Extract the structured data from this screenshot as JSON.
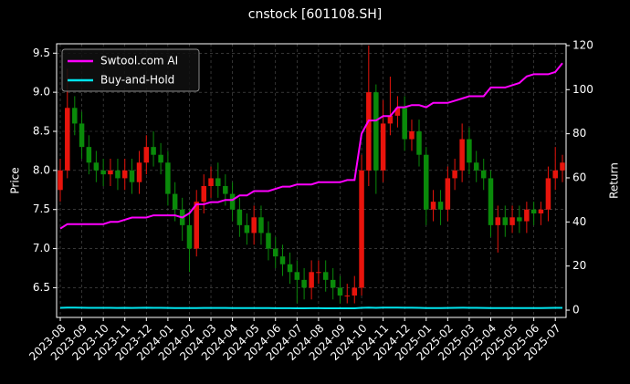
{
  "chart_data": {
    "type": "candlestick",
    "title": "cnstock [601108.SH]",
    "ylabel": "Price",
    "y2label": "Return",
    "x": [
      0,
      0.33,
      0.67,
      1,
      1.33,
      1.67,
      2,
      2.33,
      2.67,
      3,
      3.33,
      3.67,
      4,
      4.33,
      4.67,
      5,
      5.33,
      5.67,
      6,
      6.33,
      6.67,
      7,
      7.33,
      7.67,
      8,
      8.33,
      8.67,
      9,
      9.33,
      9.67,
      10,
      10.33,
      10.67,
      11,
      11.33,
      11.67,
      12,
      12.33,
      12.67,
      13,
      13.33,
      13.67,
      14,
      14.33,
      14.67,
      15,
      15.33,
      15.67,
      16,
      16.33,
      16.67,
      17,
      17.33,
      17.67,
      18,
      18.33,
      18.67,
      19,
      19.33,
      19.67,
      20,
      20.33,
      20.67,
      21,
      21.33,
      21.67,
      22,
      22.33,
      22.67,
      23,
      23.33
    ],
    "ohlc": {
      "open": [
        7.75,
        8.0,
        8.8,
        8.6,
        8.3,
        8.1,
        8.0,
        7.95,
        8.0,
        7.9,
        8.0,
        7.85,
        8.1,
        8.3,
        8.2,
        8.1,
        7.7,
        7.5,
        7.3,
        7.0,
        7.6,
        7.8,
        7.9,
        7.8,
        7.7,
        7.5,
        7.3,
        7.2,
        7.4,
        7.2,
        7.0,
        6.9,
        6.8,
        6.7,
        6.6,
        6.5,
        6.7,
        6.7,
        6.6,
        6.5,
        6.4,
        6.4,
        6.5,
        8.0,
        9.0,
        8.0,
        8.6,
        8.7,
        8.8,
        8.4,
        8.5,
        8.2,
        7.5,
        7.6,
        7.5,
        7.9,
        8.0,
        8.4,
        8.1,
        8.0,
        7.9,
        7.3,
        7.4,
        7.3,
        7.4,
        7.35,
        7.5,
        7.45,
        7.5,
        7.9,
        8.0
      ],
      "high": [
        8.15,
        9.3,
        8.95,
        8.75,
        8.45,
        8.25,
        8.15,
        8.15,
        8.15,
        8.15,
        8.15,
        8.25,
        8.45,
        8.5,
        8.35,
        8.25,
        7.85,
        7.65,
        7.5,
        7.75,
        7.95,
        8.05,
        8.1,
        7.95,
        7.85,
        7.65,
        7.45,
        7.55,
        7.55,
        7.35,
        7.15,
        7.05,
        6.95,
        6.85,
        6.75,
        6.85,
        6.85,
        6.85,
        6.75,
        6.65,
        6.55,
        6.65,
        8.2,
        9.6,
        9.1,
        8.9,
        9.2,
        8.95,
        8.95,
        8.65,
        8.65,
        8.3,
        7.75,
        7.75,
        8.05,
        8.15,
        8.6,
        8.55,
        8.25,
        8.15,
        8.0,
        7.55,
        7.55,
        7.55,
        7.55,
        7.6,
        7.6,
        7.6,
        8.05,
        8.3,
        8.2
      ],
      "low": [
        7.6,
        7.9,
        8.45,
        8.15,
        7.95,
        7.85,
        7.8,
        7.8,
        7.75,
        7.75,
        7.7,
        7.7,
        7.95,
        8.05,
        7.95,
        7.55,
        7.35,
        7.1,
        6.7,
        6.9,
        7.45,
        7.65,
        7.65,
        7.55,
        7.35,
        7.15,
        7.05,
        7.05,
        7.05,
        6.85,
        6.75,
        6.65,
        6.55,
        6.3,
        6.35,
        6.35,
        6.55,
        6.45,
        6.35,
        6.3,
        6.3,
        6.3,
        6.4,
        7.8,
        7.7,
        7.85,
        8.45,
        8.55,
        8.25,
        8.25,
        8.05,
        7.3,
        7.35,
        7.3,
        7.35,
        7.75,
        7.85,
        7.95,
        7.85,
        7.75,
        7.15,
        6.95,
        7.15,
        7.2,
        7.2,
        7.2,
        7.3,
        7.3,
        7.35,
        7.75,
        7.85
      ],
      "close": [
        8.0,
        8.8,
        8.6,
        8.3,
        8.1,
        8.0,
        7.95,
        8.0,
        7.9,
        8.0,
        7.85,
        8.1,
        8.3,
        8.2,
        8.1,
        7.7,
        7.5,
        7.3,
        7.0,
        7.6,
        7.8,
        7.9,
        7.8,
        7.7,
        7.5,
        7.3,
        7.2,
        7.4,
        7.2,
        7.0,
        6.9,
        6.8,
        6.7,
        6.6,
        6.5,
        6.7,
        6.7,
        6.6,
        6.5,
        6.4,
        6.4,
        6.5,
        8.0,
        9.0,
        8.0,
        8.6,
        8.7,
        8.8,
        8.4,
        8.5,
        8.2,
        7.5,
        7.6,
        7.5,
        7.9,
        8.0,
        8.4,
        8.1,
        8.0,
        7.9,
        7.3,
        7.4,
        7.3,
        7.4,
        7.35,
        7.5,
        7.45,
        7.5,
        7.9,
        8.0,
        8.1
      ],
      "up_color": "#e8140c",
      "down_color": "#0a8a0a"
    },
    "series": [
      {
        "name": "Swtool.com AI",
        "color": "#ff00ff",
        "axis": "y2",
        "values": [
          37,
          39,
          39,
          39,
          39,
          39,
          39,
          40,
          40,
          41,
          42,
          42,
          42,
          43,
          43,
          43,
          43,
          42,
          44,
          48,
          48,
          49,
          49,
          50,
          50,
          52,
          52,
          54,
          54,
          54,
          55,
          56,
          56,
          57,
          57,
          57,
          58,
          58,
          58,
          58,
          59,
          59,
          80,
          86,
          86,
          88,
          88,
          92,
          92,
          93,
          93,
          92,
          94,
          94,
          94,
          95,
          96,
          97,
          97,
          97,
          101,
          101,
          101,
          102,
          103,
          106,
          107,
          107,
          107,
          108,
          112
        ]
      },
      {
        "name": "Buy-and-Hold",
        "color": "#00e5ee",
        "axis": "y2",
        "values": [
          1.03,
          1.14,
          1.11,
          1.07,
          1.05,
          1.03,
          1.03,
          1.03,
          1.02,
          1.03,
          1.01,
          1.05,
          1.07,
          1.06,
          1.05,
          0.99,
          0.97,
          0.94,
          0.9,
          0.98,
          1.01,
          1.02,
          1.01,
          0.99,
          0.97,
          0.94,
          0.93,
          0.95,
          0.93,
          0.9,
          0.89,
          0.88,
          0.86,
          0.85,
          0.84,
          0.86,
          0.86,
          0.85,
          0.84,
          0.83,
          0.83,
          0.84,
          1.03,
          1.16,
          1.03,
          1.11,
          1.12,
          1.14,
          1.08,
          1.1,
          1.06,
          0.97,
          0.98,
          0.97,
          1.02,
          1.03,
          1.08,
          1.05,
          1.03,
          1.02,
          0.94,
          0.95,
          0.94,
          0.95,
          0.95,
          0.97,
          0.96,
          0.97,
          1.02,
          1.03,
          1.05
        ]
      }
    ],
    "xlim": [
      -0.17,
      23.5
    ],
    "xticks": [
      {
        "value": 0,
        "label": "2023-08"
      },
      {
        "value": 1,
        "label": "2023-09"
      },
      {
        "value": 2,
        "label": "2023-10"
      },
      {
        "value": 3,
        "label": "2023-11"
      },
      {
        "value": 4,
        "label": "2023-12"
      },
      {
        "value": 5,
        "label": "2024-01"
      },
      {
        "value": 6,
        "label": "2024-02"
      },
      {
        "value": 7,
        "label": "2024-03"
      },
      {
        "value": 8,
        "label": "2024-04"
      },
      {
        "value": 9,
        "label": "2024-05"
      },
      {
        "value": 10,
        "label": "2024-06"
      },
      {
        "value": 11,
        "label": "2024-07"
      },
      {
        "value": 12,
        "label": "2024-08"
      },
      {
        "value": 13,
        "label": "2024-09"
      },
      {
        "value": 14,
        "label": "2024-10"
      },
      {
        "value": 15,
        "label": "2024-11"
      },
      {
        "value": 16,
        "label": "2024-12"
      },
      {
        "value": 17,
        "label": "2025-01"
      },
      {
        "value": 18,
        "label": "2025-02"
      },
      {
        "value": 19,
        "label": "2025-03"
      },
      {
        "value": 20,
        "label": "2025-04"
      },
      {
        "value": 21,
        "label": "2025-05"
      },
      {
        "value": 22,
        "label": "2025-06"
      },
      {
        "value": 23,
        "label": "2025-07"
      }
    ],
    "ylim": [
      6.12,
      9.62
    ],
    "yticks": [
      6.5,
      {
        "value": 7.0,
        "label": "7.0"
      },
      7.5,
      {
        "value": 8.0,
        "label": "8.0"
      },
      8.5,
      {
        "value": 9.0,
        "label": "9.0"
      },
      9.5
    ],
    "y2lim": [
      -3.3,
      120.8
    ],
    "y2ticks": [
      0,
      20,
      40,
      60,
      80,
      100,
      120
    ],
    "grid": true,
    "legend": "upper-left"
  }
}
